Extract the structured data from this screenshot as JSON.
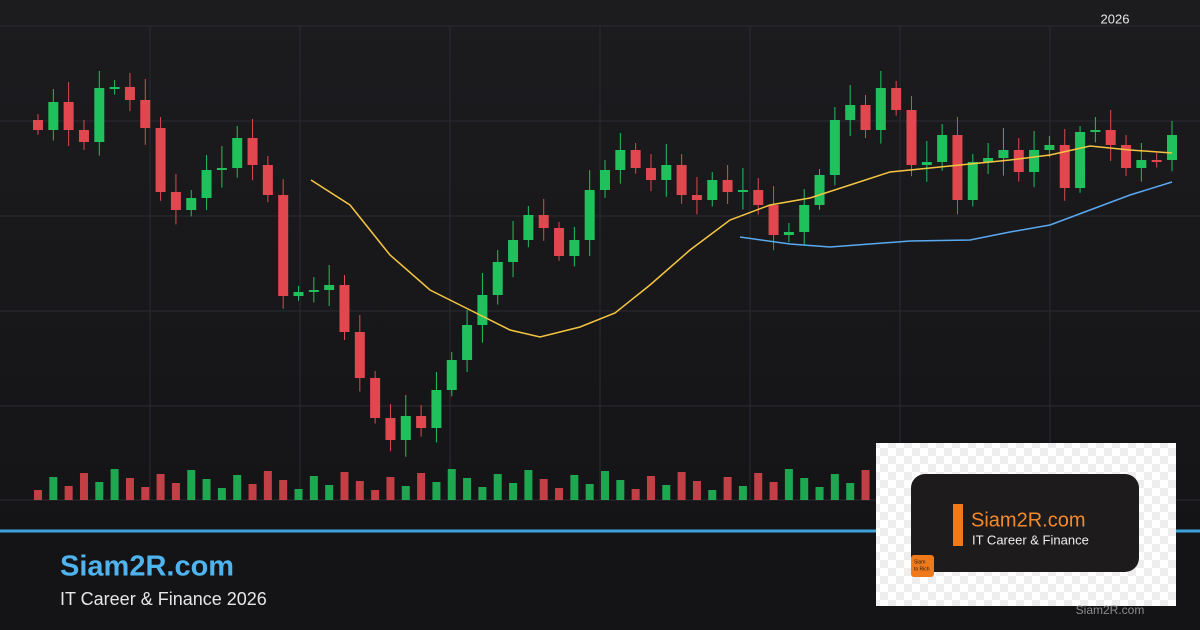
{
  "header": {
    "year": "2026"
  },
  "brand": {
    "title": "Siam2R.com",
    "tagline": "IT Career & Finance 2026"
  },
  "logo_card": {
    "title": "Siam2R.com",
    "subtitle": "IT Career & Finance",
    "badge_lines": [
      "Siam",
      "to Rich"
    ]
  },
  "watermark": "Siam2R.com"
}
